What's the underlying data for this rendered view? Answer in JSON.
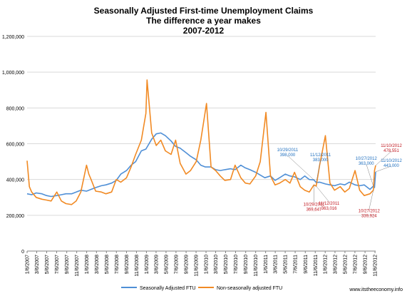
{
  "chart_data": {
    "type": "line",
    "title": [
      "Seasonally Adjusted First-time Unemployment Claims",
      "The difference a year makes",
      "2007-2012"
    ],
    "xlabel": "",
    "ylabel": "",
    "ylim": [
      0,
      1200000
    ],
    "yticks": [
      "0",
      "200,000",
      "400,000",
      "600,000",
      "800,000",
      "1,000,000",
      "1,200,000"
    ],
    "ytick_values": [
      0,
      200000,
      400000,
      600000,
      800000,
      1000000,
      1200000
    ],
    "x_start": "2007-01-06",
    "x_end": "2012-11-10",
    "xticks": [
      "1/6/2007",
      "3/6/2007",
      "5/6/2007",
      "7/6/2007",
      "9/6/2007",
      "11/6/2007",
      "1/6/2008",
      "3/6/2008",
      "5/6/2008",
      "7/6/2008",
      "9/6/2008",
      "11/6/2008",
      "1/6/2009",
      "3/6/2009",
      "5/6/2009",
      "7/6/2009",
      "9/6/2009",
      "11/6/2009",
      "1/6/2010",
      "3/6/2010",
      "5/6/2010",
      "7/6/2010",
      "9/6/2010",
      "11/6/2010",
      "1/6/2011",
      "3/6/2011",
      "5/6/2011",
      "7/6/2011",
      "9/6/2011",
      "11/6/2011",
      "1/6/2012",
      "3/6/2012",
      "5/6/2012",
      "7/6/2012",
      "9/6/2012",
      "11/6/2012"
    ],
    "grid": "horizontal",
    "legend_position": "bottom",
    "series": [
      {
        "name": "Seasonally Adjusted FTU",
        "color": "#4f8fd6",
        "points": [
          [
            "2007-01-06",
            320000
          ],
          [
            "2007-02-03",
            315000
          ],
          [
            "2007-03-03",
            325000
          ],
          [
            "2007-04-07",
            320000
          ],
          [
            "2007-05-05",
            310000
          ],
          [
            "2007-06-02",
            305000
          ],
          [
            "2007-07-07",
            310000
          ],
          [
            "2007-08-04",
            315000
          ],
          [
            "2007-09-01",
            320000
          ],
          [
            "2007-10-06",
            320000
          ],
          [
            "2007-11-03",
            330000
          ],
          [
            "2007-12-01",
            340000
          ],
          [
            "2008-01-05",
            335000
          ],
          [
            "2008-02-02",
            345000
          ],
          [
            "2008-03-01",
            355000
          ],
          [
            "2008-04-05",
            365000
          ],
          [
            "2008-05-03",
            370000
          ],
          [
            "2008-06-07",
            380000
          ],
          [
            "2008-07-05",
            395000
          ],
          [
            "2008-08-02",
            430000
          ],
          [
            "2008-09-06",
            450000
          ],
          [
            "2008-10-04",
            480000
          ],
          [
            "2008-11-01",
            500000
          ],
          [
            "2008-12-06",
            560000
          ],
          [
            "2009-01-03",
            570000
          ],
          [
            "2009-02-07",
            625000
          ],
          [
            "2009-03-07",
            655000
          ],
          [
            "2009-04-04",
            660000
          ],
          [
            "2009-05-02",
            645000
          ],
          [
            "2009-06-06",
            615000
          ],
          [
            "2009-07-04",
            585000
          ],
          [
            "2009-08-01",
            575000
          ],
          [
            "2009-09-05",
            550000
          ],
          [
            "2009-10-03",
            530000
          ],
          [
            "2009-11-07",
            510000
          ],
          [
            "2009-12-05",
            480000
          ],
          [
            "2010-01-02",
            470000
          ],
          [
            "2010-02-06",
            470000
          ],
          [
            "2010-03-06",
            455000
          ],
          [
            "2010-04-03",
            450000
          ],
          [
            "2010-05-01",
            455000
          ],
          [
            "2010-06-05",
            460000
          ],
          [
            "2010-07-03",
            455000
          ],
          [
            "2010-08-07",
            480000
          ],
          [
            "2010-09-04",
            465000
          ],
          [
            "2010-10-02",
            455000
          ],
          [
            "2010-11-06",
            440000
          ],
          [
            "2010-12-04",
            425000
          ],
          [
            "2011-01-01",
            410000
          ],
          [
            "2011-02-05",
            420000
          ],
          [
            "2011-03-05",
            395000
          ],
          [
            "2011-04-02",
            410000
          ],
          [
            "2011-05-07",
            430000
          ],
          [
            "2011-06-04",
            420000
          ],
          [
            "2011-07-02",
            415000
          ],
          [
            "2011-08-06",
            400000
          ],
          [
            "2011-09-03",
            420000
          ],
          [
            "2011-10-01",
            400000
          ],
          [
            "2011-10-29",
            398000
          ],
          [
            "2011-11-12",
            383000
          ],
          [
            "2011-12-03",
            385000
          ],
          [
            "2012-01-07",
            375000
          ],
          [
            "2012-02-04",
            370000
          ],
          [
            "2012-03-03",
            365000
          ],
          [
            "2012-04-07",
            375000
          ],
          [
            "2012-05-05",
            370000
          ],
          [
            "2012-06-02",
            385000
          ],
          [
            "2012-07-07",
            370000
          ],
          [
            "2012-08-04",
            365000
          ],
          [
            "2012-09-01",
            370000
          ],
          [
            "2012-10-06",
            345000
          ],
          [
            "2012-10-27",
            363000
          ],
          [
            "2012-11-03",
            355000
          ],
          [
            "2012-11-10",
            443000
          ]
        ]
      },
      {
        "name": "Non-seasonally adjusted FTU",
        "color": "#f18a24",
        "points": [
          [
            "2007-01-06",
            505000
          ],
          [
            "2007-01-20",
            360000
          ],
          [
            "2007-02-03",
            330000
          ],
          [
            "2007-03-03",
            300000
          ],
          [
            "2007-04-07",
            290000
          ],
          [
            "2007-05-05",
            285000
          ],
          [
            "2007-06-02",
            280000
          ],
          [
            "2007-07-07",
            330000
          ],
          [
            "2007-08-04",
            280000
          ],
          [
            "2007-09-01",
            265000
          ],
          [
            "2007-10-06",
            260000
          ],
          [
            "2007-11-03",
            280000
          ],
          [
            "2007-12-01",
            330000
          ],
          [
            "2008-01-05",
            480000
          ],
          [
            "2008-01-19",
            430000
          ],
          [
            "2008-02-02",
            400000
          ],
          [
            "2008-03-01",
            335000
          ],
          [
            "2008-04-05",
            330000
          ],
          [
            "2008-05-03",
            320000
          ],
          [
            "2008-06-07",
            330000
          ],
          [
            "2008-07-05",
            400000
          ],
          [
            "2008-08-02",
            385000
          ],
          [
            "2008-09-06",
            410000
          ],
          [
            "2008-10-04",
            470000
          ],
          [
            "2008-11-01",
            540000
          ],
          [
            "2008-12-06",
            620000
          ],
          [
            "2009-01-03",
            770000
          ],
          [
            "2009-01-10",
            957000
          ],
          [
            "2009-02-07",
            660000
          ],
          [
            "2009-03-07",
            590000
          ],
          [
            "2009-04-04",
            620000
          ],
          [
            "2009-05-02",
            560000
          ],
          [
            "2009-06-06",
            540000
          ],
          [
            "2009-07-04",
            620000
          ],
          [
            "2009-08-01",
            490000
          ],
          [
            "2009-09-05",
            430000
          ],
          [
            "2009-10-03",
            450000
          ],
          [
            "2009-11-07",
            500000
          ],
          [
            "2009-12-05",
            620000
          ],
          [
            "2010-01-09",
            825000
          ],
          [
            "2010-02-06",
            470000
          ],
          [
            "2010-03-06",
            450000
          ],
          [
            "2010-04-03",
            420000
          ],
          [
            "2010-05-01",
            395000
          ],
          [
            "2010-06-05",
            400000
          ],
          [
            "2010-07-03",
            480000
          ],
          [
            "2010-08-07",
            410000
          ],
          [
            "2010-09-04",
            380000
          ],
          [
            "2010-10-02",
            375000
          ],
          [
            "2010-11-06",
            420000
          ],
          [
            "2010-12-04",
            500000
          ],
          [
            "2011-01-08",
            775000
          ],
          [
            "2011-02-05",
            420000
          ],
          [
            "2011-03-05",
            370000
          ],
          [
            "2011-04-02",
            380000
          ],
          [
            "2011-05-07",
            400000
          ],
          [
            "2011-06-04",
            380000
          ],
          [
            "2011-07-02",
            440000
          ],
          [
            "2011-08-06",
            360000
          ],
          [
            "2011-09-03",
            340000
          ],
          [
            "2011-10-01",
            330000
          ],
          [
            "2011-10-29",
            369647
          ],
          [
            "2011-11-12",
            363016
          ],
          [
            "2011-12-03",
            480000
          ],
          [
            "2012-01-07",
            645000
          ],
          [
            "2012-02-04",
            380000
          ],
          [
            "2012-03-03",
            340000
          ],
          [
            "2012-04-07",
            360000
          ],
          [
            "2012-05-05",
            330000
          ],
          [
            "2012-06-02",
            350000
          ],
          [
            "2012-07-07",
            450000
          ],
          [
            "2012-08-04",
            340000
          ],
          [
            "2012-09-01",
            310000
          ],
          [
            "2012-10-06",
            320000
          ],
          [
            "2012-10-27",
            339924
          ],
          [
            "2012-11-03",
            450000
          ],
          [
            "2012-11-10",
            478551
          ]
        ]
      }
    ],
    "annotations": [
      {
        "series": 0,
        "date": "2011-10-29",
        "value": 398000,
        "label": [
          "10/29/2011",
          "398,000"
        ],
        "color": "#1f6fbf",
        "side": "above"
      },
      {
        "series": 0,
        "date": "2011-11-12",
        "value": 383000,
        "label": [
          "11/12/2011",
          "383,000"
        ],
        "color": "#1f6fbf",
        "side": "above"
      },
      {
        "series": 0,
        "date": "2012-10-27",
        "value": 363000,
        "label": [
          "10/27/2012",
          "363,000"
        ],
        "color": "#1f6fbf",
        "side": "above"
      },
      {
        "series": 0,
        "date": "2012-11-10",
        "value": 443000,
        "label": [
          "11/10/2012",
          "443,000"
        ],
        "color": "#1f6fbf",
        "side": "right"
      },
      {
        "series": 1,
        "date": "2011-10-29",
        "value": 369647,
        "label": [
          "10/29/2011",
          "369,647"
        ],
        "color": "#c0161e",
        "side": "below"
      },
      {
        "series": 1,
        "date": "2011-11-12",
        "value": 363016,
        "label": [
          "11/12/2011",
          "363,016"
        ],
        "color": "#c0161e",
        "side": "below"
      },
      {
        "series": 1,
        "date": "2012-10-27",
        "value": 339924,
        "label": [
          "10/27/2012",
          "339,924"
        ],
        "color": "#c0161e",
        "side": "below"
      },
      {
        "series": 1,
        "date": "2012-11-10",
        "value": 478551,
        "label": [
          "11/10/2012",
          "478,551"
        ],
        "color": "#c0161e",
        "side": "right"
      }
    ]
  },
  "source": "www.itstheeconomy.info"
}
